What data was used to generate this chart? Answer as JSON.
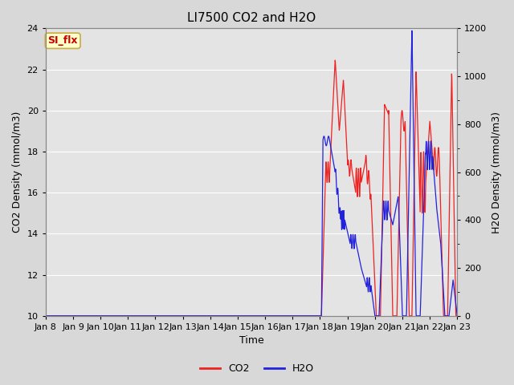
{
  "title": "LI7500 CO2 and H2O",
  "xlabel": "Time",
  "ylabel_left": "CO2 Density (mmol/m3)",
  "ylabel_right": "H2O Density (mmol/m3)",
  "ylim_left": [
    10,
    24
  ],
  "ylim_right": [
    0,
    1200
  ],
  "yticks_left": [
    10,
    12,
    14,
    16,
    18,
    20,
    22,
    24
  ],
  "yticks_right": [
    0,
    200,
    400,
    600,
    800,
    1000,
    1200
  ],
  "annotation_text": "SI_flx",
  "annotation_bg": "#ffffcc",
  "annotation_border": "#ccaa44",
  "co2_color": "#ee2222",
  "h2o_color": "#2222dd",
  "figure_bg": "#d8d8d8",
  "axes_bg": "#e4e4e4",
  "grid_color": "#ffffff",
  "title_fontsize": 11,
  "legend_fontsize": 9,
  "axis_label_fontsize": 9,
  "tick_fontsize": 8,
  "xtick_labels": [
    "Jan 8",
    "Jan 9",
    "Jan 10",
    "Jan 11",
    "Jan 12",
    "Jan 13",
    "Jan 14",
    "Jan 15",
    "Jan 16",
    "Jan 17",
    "Jan 18",
    "Jan 19",
    "Jan 20",
    "Jan 21",
    "Jan 22",
    "Jan 23"
  ],
  "xtick_vals": [
    0,
    1,
    2,
    3,
    4,
    5,
    6,
    7,
    8,
    9,
    10,
    11,
    12,
    13,
    14,
    15
  ]
}
